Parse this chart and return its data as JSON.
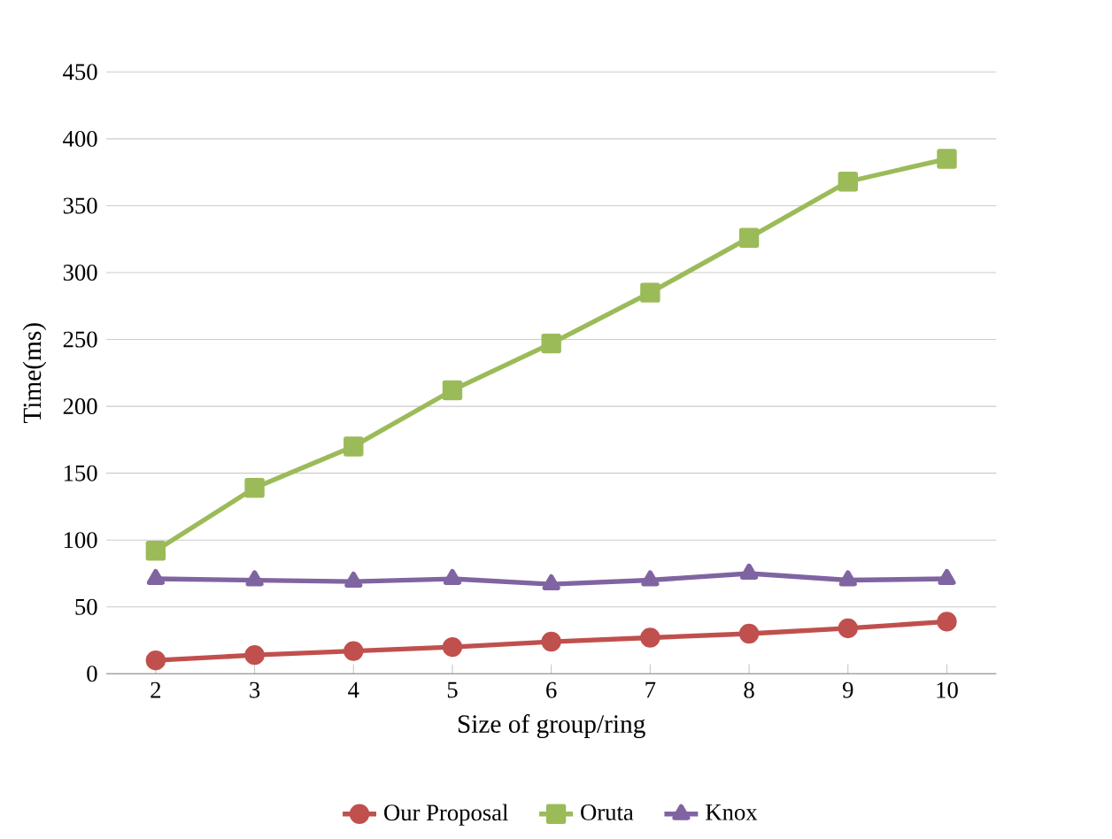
{
  "chart_data": {
    "type": "line",
    "xlabel": "Size of group/ring",
    "ylabel": "Time(ms)",
    "categories": [
      "2",
      "3",
      "4",
      "5",
      "6",
      "7",
      "8",
      "9",
      "10"
    ],
    "ylim": [
      0,
      450
    ],
    "yticks": [
      0,
      50,
      100,
      150,
      200,
      250,
      300,
      350,
      400,
      450
    ],
    "grid": "y",
    "legend": "bottom",
    "series": [
      {
        "name": "Our Proposal",
        "color": "#c0504d",
        "marker": "circle",
        "values": [
          10,
          14,
          17,
          20,
          24,
          27,
          30,
          34,
          39
        ]
      },
      {
        "name": "Oruta",
        "color": "#9bbb59",
        "marker": "square",
        "values": [
          92,
          139,
          170,
          212,
          247,
          285,
          326,
          368,
          385
        ]
      },
      {
        "name": "Knox",
        "color": "#8064a2",
        "marker": "triangle",
        "values": [
          71,
          70,
          69,
          71,
          67,
          70,
          75,
          70,
          71
        ]
      }
    ]
  }
}
